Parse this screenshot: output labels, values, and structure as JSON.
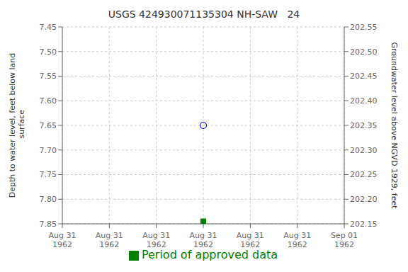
{
  "chart_data": {
    "type": "scatter",
    "title": "USGS 424930071135304 NH-SAW   24",
    "ylabel": "Depth to water level, feet below land\n surface",
    "y2label": "Groundwater level above NGVD 1929, feet",
    "categories": [
      "Aug 31\n1962",
      "Aug 31\n1962",
      "Aug 31\n1962",
      "Aug 31\n1962",
      "Aug 31\n1962",
      "Aug 31\n1962",
      "Sep 01\n1962"
    ],
    "series": [
      {
        "color": "blue",
        "marker": "open_circle",
        "values": [
          null,
          null,
          null,
          7.65,
          null,
          null,
          null
        ]
      },
      {
        "name": "Period of approved data",
        "color": "green",
        "marker": "square",
        "values": [
          null,
          null,
          null,
          7.845,
          null,
          null,
          null
        ]
      }
    ],
    "ylim": [
      7.85,
      7.45
    ],
    "yticks": [
      7.45,
      {
        "value": 7.5,
        "label": "7.50"
      },
      7.55,
      {
        "value": 7.6,
        "label": "7.60"
      },
      7.65,
      {
        "value": 7.7,
        "label": "7.70"
      },
      7.75,
      {
        "value": 7.8,
        "label": "7.80"
      },
      7.85
    ],
    "y2lim": [
      202.15,
      202.55
    ],
    "y2ticks": [
      202.55,
      {
        "value": 202.5,
        "label": "202.50"
      },
      202.45,
      {
        "value": 202.4,
        "label": "202.40"
      },
      202.35,
      {
        "value": 202.3,
        "label": "202.30"
      },
      202.25,
      {
        "value": 202.2,
        "label": "202.20"
      },
      202.15
    ],
    "grid": true,
    "legend": "bottom"
  }
}
